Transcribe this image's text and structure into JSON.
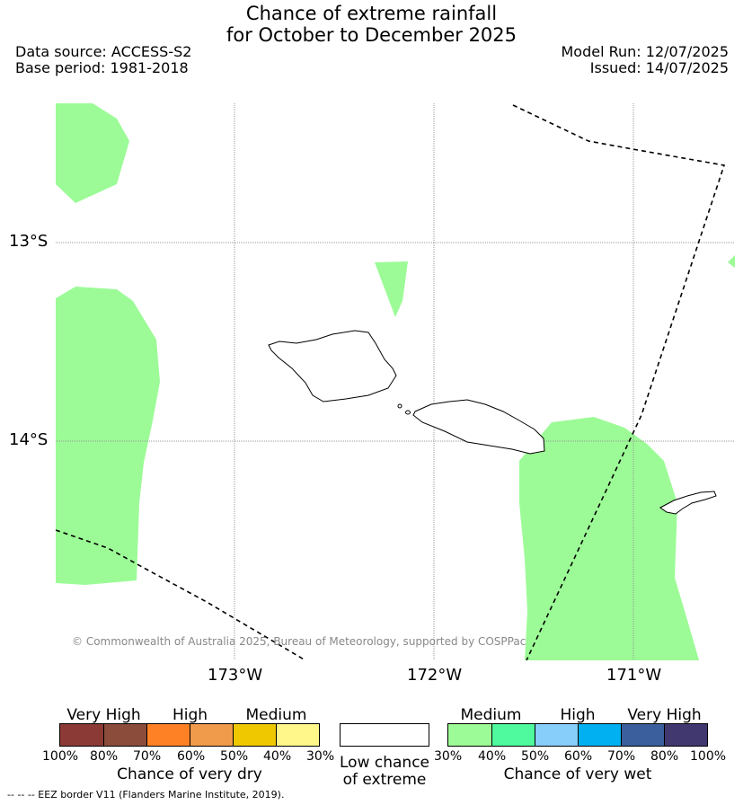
{
  "title_line1": "Chance of extreme rainfall",
  "title_line2": "for October to December 2025",
  "data_source": "Data source: ACCESS-S2",
  "base_period": "Base period: 1981-2018",
  "model_run": "Model Run: 12/07/2025",
  "issued": "Issued: 14/07/2025",
  "lat_labels": [
    "13°S",
    "14°S"
  ],
  "lon_labels": [
    "173°W",
    "172°W",
    "171°W"
  ],
  "credit": "© Commonwealth of Australia 2025, Bureau of Meteorology, supported by COSPPac",
  "dry_bar": {
    "groups": [
      "Very High",
      "High",
      "Medium"
    ],
    "ticks": [
      "100%",
      "80%",
      "70%",
      "60%",
      "50%",
      "40%",
      "30%"
    ],
    "colors": [
      "#8b3a35",
      "#8b4c3c",
      "#ff8126",
      "#f09a4b",
      "#f0c800",
      "#fff78a"
    ],
    "caption": "Chance of very dry"
  },
  "low_box": {
    "caption1": "Low chance",
    "caption2": "of extreme",
    "color": "#ffffff"
  },
  "wet_bar": {
    "groups": [
      "Medium",
      "High",
      "Very High"
    ],
    "ticks": [
      "30%",
      "40%",
      "50%",
      "60%",
      "70%",
      "80%",
      "100%"
    ],
    "colors": [
      "#9cfb96",
      "#4ffa9e",
      "#87cefa",
      "#00b0f0",
      "#3a5f9c",
      "#423870"
    ],
    "caption": "Chance of very wet"
  },
  "footnote": "-- -- -- EEZ border V11 (Flanders Marine Institute, 2019).",
  "map_colors": {
    "wet_medium": "#9cfb96",
    "gridline": "#999999",
    "eez": "#000000"
  }
}
